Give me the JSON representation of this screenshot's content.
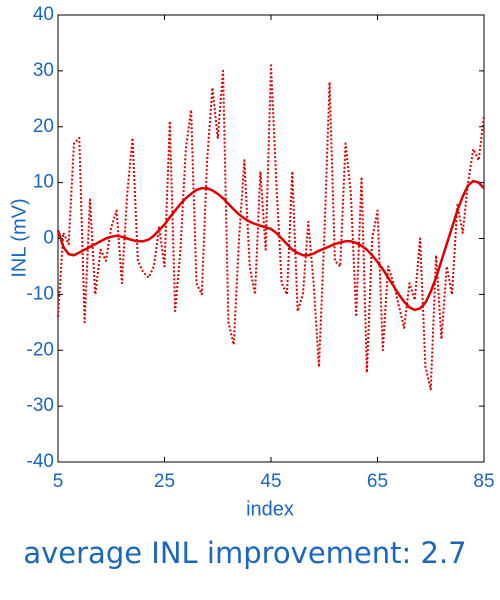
{
  "chart_data": {
    "type": "line",
    "xlabel": "index",
    "ylabel": "INL (mV)",
    "caption": "average INL improvement: 2.7",
    "x": [
      5,
      6,
      7,
      8,
      9,
      10,
      11,
      12,
      13,
      14,
      15,
      16,
      17,
      18,
      19,
      20,
      21,
      22,
      23,
      24,
      25,
      26,
      27,
      28,
      29,
      30,
      31,
      32,
      33,
      34,
      35,
      36,
      37,
      38,
      39,
      40,
      41,
      42,
      43,
      44,
      45,
      46,
      47,
      48,
      49,
      50,
      51,
      52,
      53,
      54,
      55,
      56,
      57,
      58,
      59,
      60,
      61,
      62,
      63,
      64,
      65,
      66,
      67,
      68,
      69,
      70,
      71,
      72,
      73,
      74,
      75,
      76,
      77,
      78,
      79,
      80,
      81,
      82,
      83,
      84,
      85
    ],
    "series": [
      {
        "color": "#e00000",
        "linestyle": "dotted",
        "values": [
          -14,
          1,
          -1,
          17,
          18,
          -15,
          7,
          -10,
          -2,
          -4,
          2,
          5,
          -8,
          8,
          18,
          -4,
          -6,
          -7,
          -5,
          2,
          -5,
          21,
          -13,
          -2,
          16,
          23,
          -8,
          -10,
          14,
          27,
          18,
          30,
          -15,
          -19,
          0,
          14,
          -5,
          -10,
          12,
          -2,
          31,
          10,
          -8,
          -10,
          12,
          -13,
          -10,
          3,
          -8,
          -23,
          0,
          28,
          -4,
          -5,
          17,
          8,
          -14,
          11,
          -24,
          0,
          5,
          -20,
          -5,
          -8,
          -12,
          -16,
          -8,
          -11,
          0,
          -23,
          -27,
          -3,
          -18,
          -5,
          -10,
          6,
          1,
          10,
          16,
          14,
          22
        ]
      },
      {
        "color": "#e00000",
        "linestyle": "solid",
        "values": [
          1.5,
          -1.5,
          -2.8,
          -3,
          -2.5,
          -2,
          -1.5,
          -1,
          -0.5,
          0,
          0.3,
          0.5,
          0.3,
          0,
          -0.3,
          -0.5,
          -0.5,
          -0.2,
          0.5,
          1.5,
          2.5,
          3.8,
          5,
          6.2,
          7.2,
          8,
          8.7,
          9,
          9,
          8.6,
          8,
          7.2,
          6.2,
          5.2,
          4.3,
          3.6,
          3,
          2.6,
          2.3,
          2,
          1.7,
          1,
          0,
          -1,
          -2,
          -2.6,
          -3,
          -3,
          -2.7,
          -2.2,
          -1.8,
          -1.4,
          -1,
          -0.7,
          -0.5,
          -0.5,
          -0.8,
          -1.3,
          -2,
          -3,
          -4.2,
          -5.5,
          -7,
          -8.5,
          -10,
          -11.3,
          -12.3,
          -12.8,
          -12.5,
          -11.5,
          -9.5,
          -7,
          -4,
          -1,
          2,
          5,
          7.5,
          9.5,
          10.3,
          10,
          9
        ]
      }
    ],
    "xlim": [
      5,
      85
    ],
    "xticks": [
      5,
      25,
      45,
      65,
      85
    ],
    "ylim": [
      -40,
      40
    ],
    "yticks": [
      -40,
      -30,
      -20,
      -10,
      0,
      10,
      20,
      30,
      40
    ]
  }
}
